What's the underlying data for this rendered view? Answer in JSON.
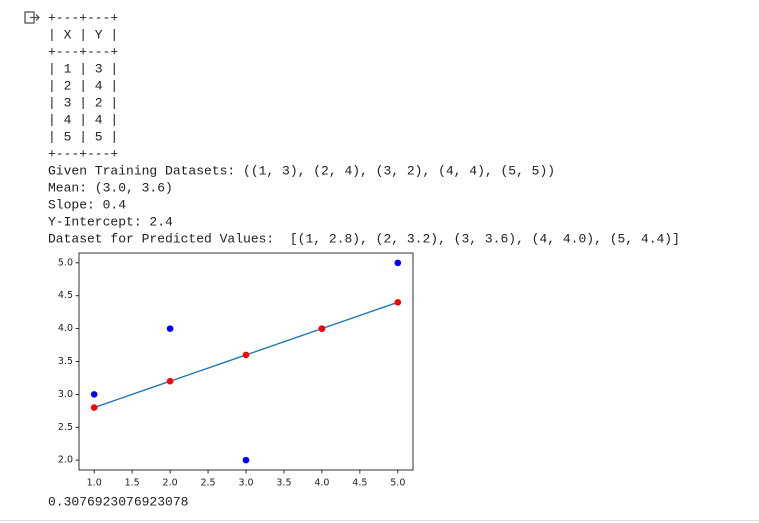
{
  "output": {
    "table_lines": [
      "+---+---+",
      "| X | Y |",
      "+---+---+",
      "| 1 | 3 |",
      "| 2 | 4 |",
      "| 3 | 2 |",
      "| 4 | 4 |",
      "| 5 | 5 |",
      "+---+---+"
    ],
    "lines": [
      "Given Training Datasets: ((1, 3), (2, 4), (3, 2), (4, 4), (5, 5))",
      "Mean: (3.0, 3.6)",
      "Slope: 0.4",
      "Y-Intercept: 2.4",
      "Dataset for Predicted Values:  [(1, 2.8), (2, 3.2), (3, 3.6), (4, 4.0), (5, 4.4)]"
    ],
    "result": "0.3076923076923078"
  },
  "chart_data": {
    "type": "scatter",
    "x": [
      1,
      2,
      3,
      4,
      5
    ],
    "series": [
      {
        "kind": "scatter",
        "color": "#0000ff",
        "values": [
          3,
          4,
          2,
          4,
          5
        ]
      },
      {
        "kind": "line",
        "color": "#1f77b4",
        "values": [
          2.8,
          3.2,
          3.6,
          4.0,
          4.4
        ]
      },
      {
        "kind": "scatter",
        "color": "#ff0000",
        "values": [
          2.8,
          3.2,
          3.6,
          4.0,
          4.4
        ]
      }
    ],
    "xlim": [
      0.8,
      5.2
    ],
    "xticks": [
      {
        "value": 1,
        "label": "1.0"
      },
      1.5,
      {
        "value": 2,
        "label": "2.0"
      },
      2.5,
      {
        "value": 3,
        "label": "3.0"
      },
      3.5,
      {
        "value": 4,
        "label": "4.0"
      },
      4.5,
      {
        "value": 5,
        "label": "5.0"
      }
    ],
    "ylim": [
      1.85,
      5.15
    ],
    "yticks": [
      {
        "value": 2,
        "label": "2.0"
      },
      2.5,
      {
        "value": 3,
        "label": "3.0"
      },
      3.5,
      {
        "value": 4,
        "label": "4.0"
      },
      4.5,
      {
        "value": 5,
        "label": "5.0"
      }
    ]
  }
}
